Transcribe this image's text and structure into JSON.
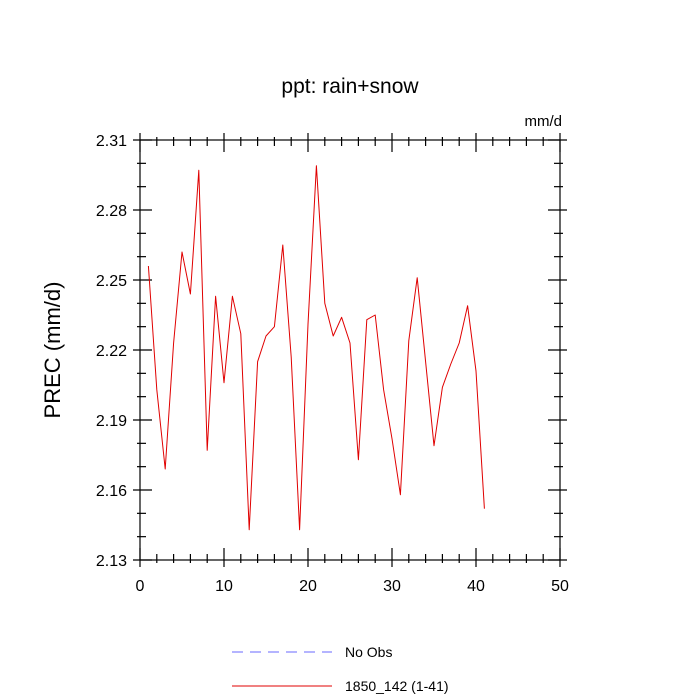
{
  "chart_data": {
    "type": "line",
    "title": "ppt: rain+snow",
    "units_label": "mm/d",
    "xlabel": "",
    "ylabel": "PREC  (mm/d)",
    "xlim": [
      0,
      50
    ],
    "ylim": [
      2.13,
      2.31
    ],
    "xticks": [
      0,
      10,
      20,
      30,
      40,
      50
    ],
    "yticks": [
      2.13,
      2.16,
      2.19,
      2.22,
      2.25,
      2.28,
      2.31
    ],
    "ytick_labels": [
      "2.13",
      "2.16",
      "2.19",
      "2.22",
      "2.25",
      "2.28",
      "2.31"
    ],
    "grid": false,
    "legend_position": "bottom",
    "legend": [
      {
        "label": "No Obs",
        "color": "#6a6aff",
        "style": "dashed"
      },
      {
        "label": "1850_142 (1-41)",
        "color": "#e00000",
        "style": "solid"
      }
    ],
    "series": [
      {
        "name": "1850_142 (1-41)",
        "color": "#e00000",
        "x": [
          1,
          2,
          3,
          4,
          5,
          6,
          7,
          8,
          9,
          10,
          11,
          12,
          13,
          14,
          15,
          16,
          17,
          18,
          19,
          20,
          21,
          22,
          23,
          24,
          25,
          26,
          27,
          28,
          29,
          30,
          31,
          32,
          33,
          34,
          35,
          36,
          37,
          38,
          39,
          40,
          41
        ],
        "values": [
          2.256,
          2.203,
          2.169,
          2.223,
          2.262,
          2.244,
          2.297,
          2.177,
          2.243,
          2.206,
          2.243,
          2.227,
          2.143,
          2.215,
          2.226,
          2.23,
          2.265,
          2.217,
          2.143,
          2.231,
          2.299,
          2.24,
          2.226,
          2.234,
          2.223,
          2.173,
          2.233,
          2.235,
          2.203,
          2.182,
          2.158,
          2.224,
          2.251,
          2.215,
          2.179,
          2.204,
          2.214,
          2.223,
          2.239,
          2.211,
          2.152
        ]
      }
    ]
  }
}
